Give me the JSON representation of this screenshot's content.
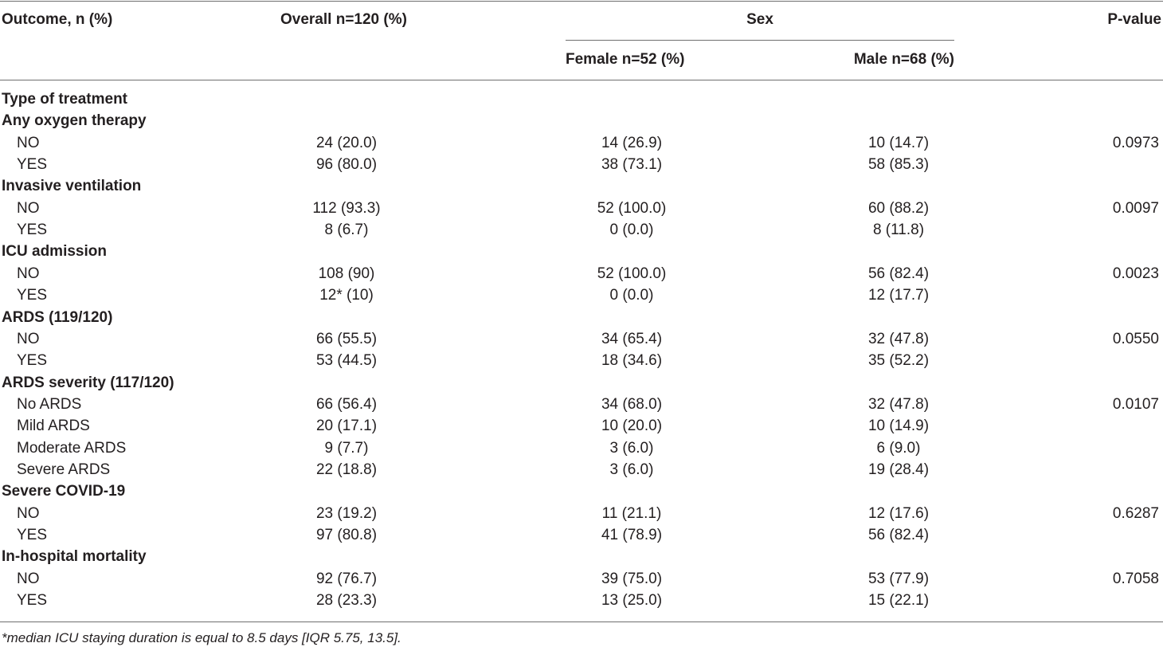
{
  "table": {
    "headers": {
      "outcome": "Outcome, n (%)",
      "overall": "Overall n=120 (%)",
      "sex": "Sex",
      "female": "Female n=52 (%)",
      "male": "Male n=68 (%)",
      "pvalue": "P-value"
    },
    "rows": [
      {
        "label": "Type of treatment",
        "group": true
      },
      {
        "label": "Any oxygen therapy",
        "group": true
      },
      {
        "label": "NO",
        "overall": "24 (20.0)",
        "female": "14 (26.9)",
        "male": "10 (14.7)",
        "p": "0.0973"
      },
      {
        "label": "YES",
        "overall": "96 (80.0)",
        "female": "38 (73.1)",
        "male": "58 (85.3)",
        "p": ""
      },
      {
        "label": "Invasive ventilation",
        "group": true
      },
      {
        "label": "NO",
        "overall": "112 (93.3)",
        "female": "52 (100.0)",
        "male": "60 (88.2)",
        "p": "0.0097"
      },
      {
        "label": "YES",
        "overall": "8 (6.7)",
        "female": "0 (0.0)",
        "male": "8 (11.8)",
        "p": ""
      },
      {
        "label": "ICU admission",
        "group": true
      },
      {
        "label": "NO",
        "overall": "108 (90)",
        "female": "52 (100.0)",
        "male": "56 (82.4)",
        "p": "0.0023"
      },
      {
        "label": "YES",
        "overall": "12* (10)",
        "female": "0 (0.0)",
        "male": "12 (17.7)",
        "p": ""
      },
      {
        "label": "ARDS (119/120)",
        "group": true
      },
      {
        "label": "NO",
        "overall": "66 (55.5)",
        "female": "34 (65.4)",
        "male": "32 (47.8)",
        "p": "0.0550"
      },
      {
        "label": "YES",
        "overall": "53 (44.5)",
        "female": "18 (34.6)",
        "male": "35 (52.2)",
        "p": ""
      },
      {
        "label": "ARDS severity (117/120)",
        "group": true
      },
      {
        "label": "No ARDS",
        "overall": "66 (56.4)",
        "female": "34 (68.0)",
        "male": "32 (47.8)",
        "p": "0.0107"
      },
      {
        "label": "Mild ARDS",
        "overall": "20 (17.1)",
        "female": "10 (20.0)",
        "male": "10 (14.9)",
        "p": ""
      },
      {
        "label": "Moderate ARDS",
        "overall": "9 (7.7)",
        "female": "3 (6.0)",
        "male": "6 (9.0)",
        "p": ""
      },
      {
        "label": "Severe ARDS",
        "overall": "22 (18.8)",
        "female": "3 (6.0)",
        "male": "19 (28.4)",
        "p": ""
      },
      {
        "label": "Severe COVID-19",
        "group": true
      },
      {
        "label": "NO",
        "overall": "23 (19.2)",
        "female": "11 (21.1)",
        "male": "12 (17.6)",
        "p": "0.6287"
      },
      {
        "label": "YES",
        "overall": "97 (80.8)",
        "female": "41 (78.9)",
        "male": "56 (82.4)",
        "p": ""
      },
      {
        "label": "In-hospital mortality",
        "group": true
      },
      {
        "label": "NO",
        "overall": "92 (76.7)",
        "female": "39 (75.0)",
        "male": "53 (77.9)",
        "p": "0.7058"
      },
      {
        "label": "YES",
        "overall": "28 (23.3)",
        "female": "13 (25.0)",
        "male": "15 (22.1)",
        "p": ""
      }
    ]
  },
  "footnote": "*median ICU staying duration is equal to 8.5 days [IQR 5.75, 13.5]."
}
